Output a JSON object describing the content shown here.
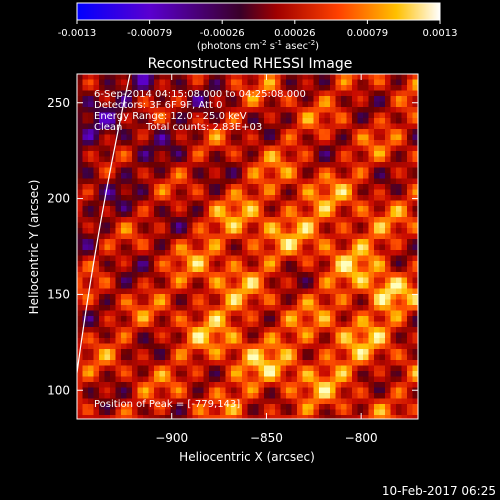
{
  "chart_data": {
    "type": "heatmap",
    "title": "Reconstructed RHESSI Image",
    "colorbar": {
      "ticks": [
        "-0.0013",
        "-0.00079",
        "-0.00026",
        "0.00026",
        "0.00079",
        "0.0013"
      ],
      "unit_prefix": "(photons cm",
      "unit_exp1": "-2",
      "unit_mid": " s",
      "unit_exp2": "-1",
      "unit_mid2": " asec",
      "unit_exp3": "-2",
      "unit_suffix": ")",
      "colormap": [
        "#0000ff",
        "#6a00c8",
        "#6a0a28",
        "#c00000",
        "#ff5000",
        "#ffd000",
        "#ffffff"
      ]
    },
    "xlabel": "Heliocentric X (arcsec)",
    "ylabel": "Heliocentric Y (arcsec)",
    "xlim": [
      -950,
      -770
    ],
    "ylim": [
      85,
      265
    ],
    "xticks": [
      -900,
      -850,
      -800
    ],
    "xtick_labels": [
      "−900",
      "−850",
      "−800"
    ],
    "yticks": [
      100,
      150,
      200,
      250
    ],
    "yvals_labels": [
      "100",
      "150",
      "200",
      "250"
    ],
    "annotations": {
      "time": "6-Sep-2014 04:15:08.000 to 04:25:08.000",
      "detectors": "Detectors: 3F 6F 9F, Att 0",
      "energy": "Energy Range: 12.0 - 25.0 keV",
      "algorithm": "Clean",
      "counts": "Total counts: 2.83E+03",
      "peak": "Position of Peak = [-779,143]"
    },
    "peak": [
      -779,
      143
    ],
    "limb": "white curve along the left edge"
  },
  "footer": {
    "timestamp": "10-Feb-2017 06:25"
  }
}
